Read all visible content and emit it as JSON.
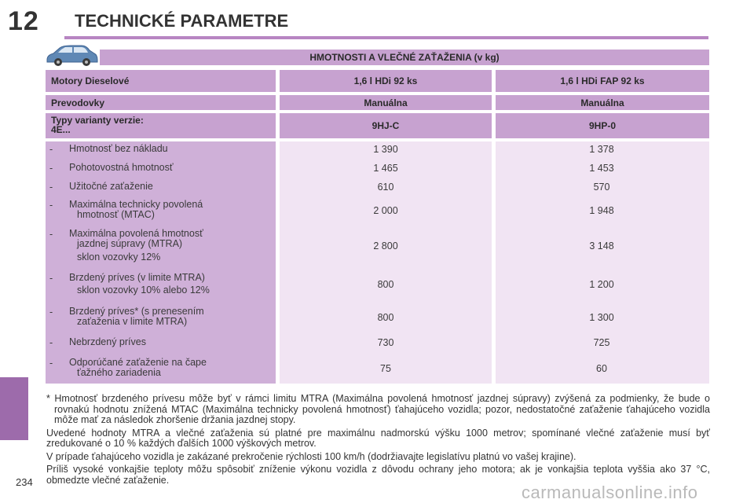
{
  "header": {
    "chapter": "12",
    "title": "TECHNICKÉ PARAMETRE"
  },
  "page_number": "234",
  "table": {
    "title": "HMOTNOSTI A VLEČNÉ ZAŤAŽENIA (v kg)",
    "header_rows": [
      {
        "label": "Motory Dieselové",
        "col1": "1,6 l HDi 92 ks",
        "col2": "1,6 l HDi FAP 92 ks"
      },
      {
        "label": "Prevodovky",
        "col1": "Manuálna",
        "col2": "Manuálna"
      },
      {
        "label_line1": "Typy varianty verzie:",
        "label_line2": "4E...",
        "col1": "9HJ-C",
        "col2": "9HP-0"
      }
    ],
    "rows": [
      {
        "dash": "-",
        "l1": "Hmotnosť bez nákladu",
        "l2": "",
        "l3": "",
        "v1": "1 390",
        "v2": "1 378"
      },
      {
        "dash": "-",
        "l1": "Pohotovostná hmotnosť",
        "l2": "",
        "l3": "",
        "v1": "1 465",
        "v2": "1 453"
      },
      {
        "dash": "-",
        "l1": "Užitočné zaťaženie",
        "l2": "",
        "l3": "",
        "v1": "610",
        "v2": "570"
      },
      {
        "dash": "-",
        "l1": "Maximálna technicky povolená",
        "l2": "hmotnosť (MTAC)",
        "l3": "",
        "v1": "2 000",
        "v2": "1 948"
      },
      {
        "dash": "-",
        "l1": "Maximálna povolená hmotnosť",
        "l2": "jazdnej súpravy (MTRA)",
        "l3": "sklon vozovky 12%",
        "v1": "2 800",
        "v2": "3 148"
      },
      {
        "dash": "-",
        "l1": "Brzdený príves (v limite MTRA)",
        "l2": "sklon vozovky 10% alebo 12%",
        "l3": "",
        "v1": "800",
        "v2": "1 200"
      },
      {
        "dash": "-",
        "l1": "Brzdený príves* (s prenesením",
        "l2": "zaťaženia v limite MTRA)",
        "l3": "",
        "v1": "800",
        "v2": "1 300"
      },
      {
        "dash": "-",
        "l1": "Nebrzdený príves",
        "l2": "",
        "l3": "",
        "v1": "730",
        "v2": "725"
      },
      {
        "dash": "-",
        "l1": "Odporúčané zaťaženie na čape",
        "l2": "ťažného zariadenia",
        "l3": "",
        "v1": "75",
        "v2": "60"
      }
    ]
  },
  "notes": {
    "footnote": "* Hmotnosť brzdeného prívesu môže byť v rámci limitu MTRA (Maximálna povolená hmotnosť jazdnej súpravy) zvýšená za podmienky, že bude o rovnakú hodnotu znížená MTAC (Maximálna technicky povolená hmotnosť) ťahajúceho vozidla; pozor, nedostatočné zaťaženie ťahajúceho vozidla môže mať za následok zhoršenie držania jazdnej stopy.",
    "p1": "Uvedené hodnoty MTRA a vlečné zaťaženia sú platné pre maximálnu nadmorskú výšku 1000 metrov; spomínané vlečné zaťaženie musí byť zredukované o 10 % každých ďalších 1000 výškových metrov.",
    "p2": "V prípade ťahajúceho vozidla je zakázané prekročenie rýchlosti 100 km/h (dodržiavajte legislatívu platnú vo vašej krajine).",
    "p3": "Príliš vysoké vonkajšie teploty môžu spôsobiť zníženie výkonu vozidla z dôvodu ochrany jeho motora; ak je vonkajšia teplota vyššia ako 37 °C, obmedzte vlečné zaťaženie."
  },
  "watermark": "carmanualsonline.info",
  "colors": {
    "accent": "#b785c2",
    "header_bg": "#c7a2d0",
    "label_bg": "#cfb0d8",
    "body_bg": "#f1e4f3",
    "tab": "#9d6bab"
  }
}
